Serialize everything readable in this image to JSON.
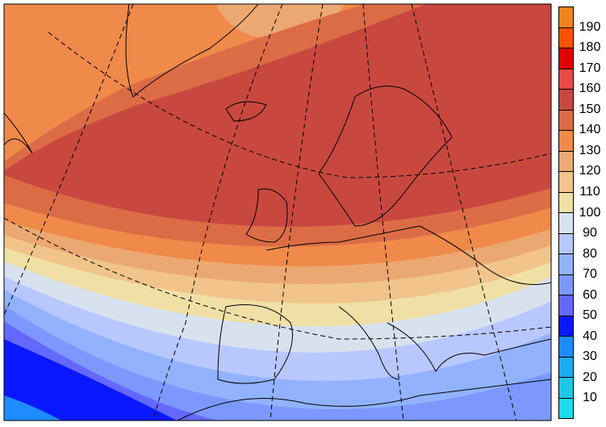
{
  "colorbar": {
    "labels": [
      "190",
      "180",
      "170",
      "160",
      "150",
      "140",
      "130",
      "120",
      "110",
      "100",
      "90",
      "80",
      "70",
      "60",
      "50",
      "40",
      "30",
      "20",
      "10"
    ],
    "colors": [
      "#f5821e",
      "#ff5200",
      "#e00000",
      "#e84a46",
      "#c84840",
      "#dc6c46",
      "#f08a4a",
      "#eca872",
      "#f0c48a",
      "#f0e0a6",
      "#d8e2ee",
      "#b8c8ff",
      "#92b2ff",
      "#7c98ff",
      "#6468ff",
      "#0a18ff",
      "#1e8cff",
      "#1eaaf0",
      "#20c8e8",
      "#1edcec"
    ]
  }
}
